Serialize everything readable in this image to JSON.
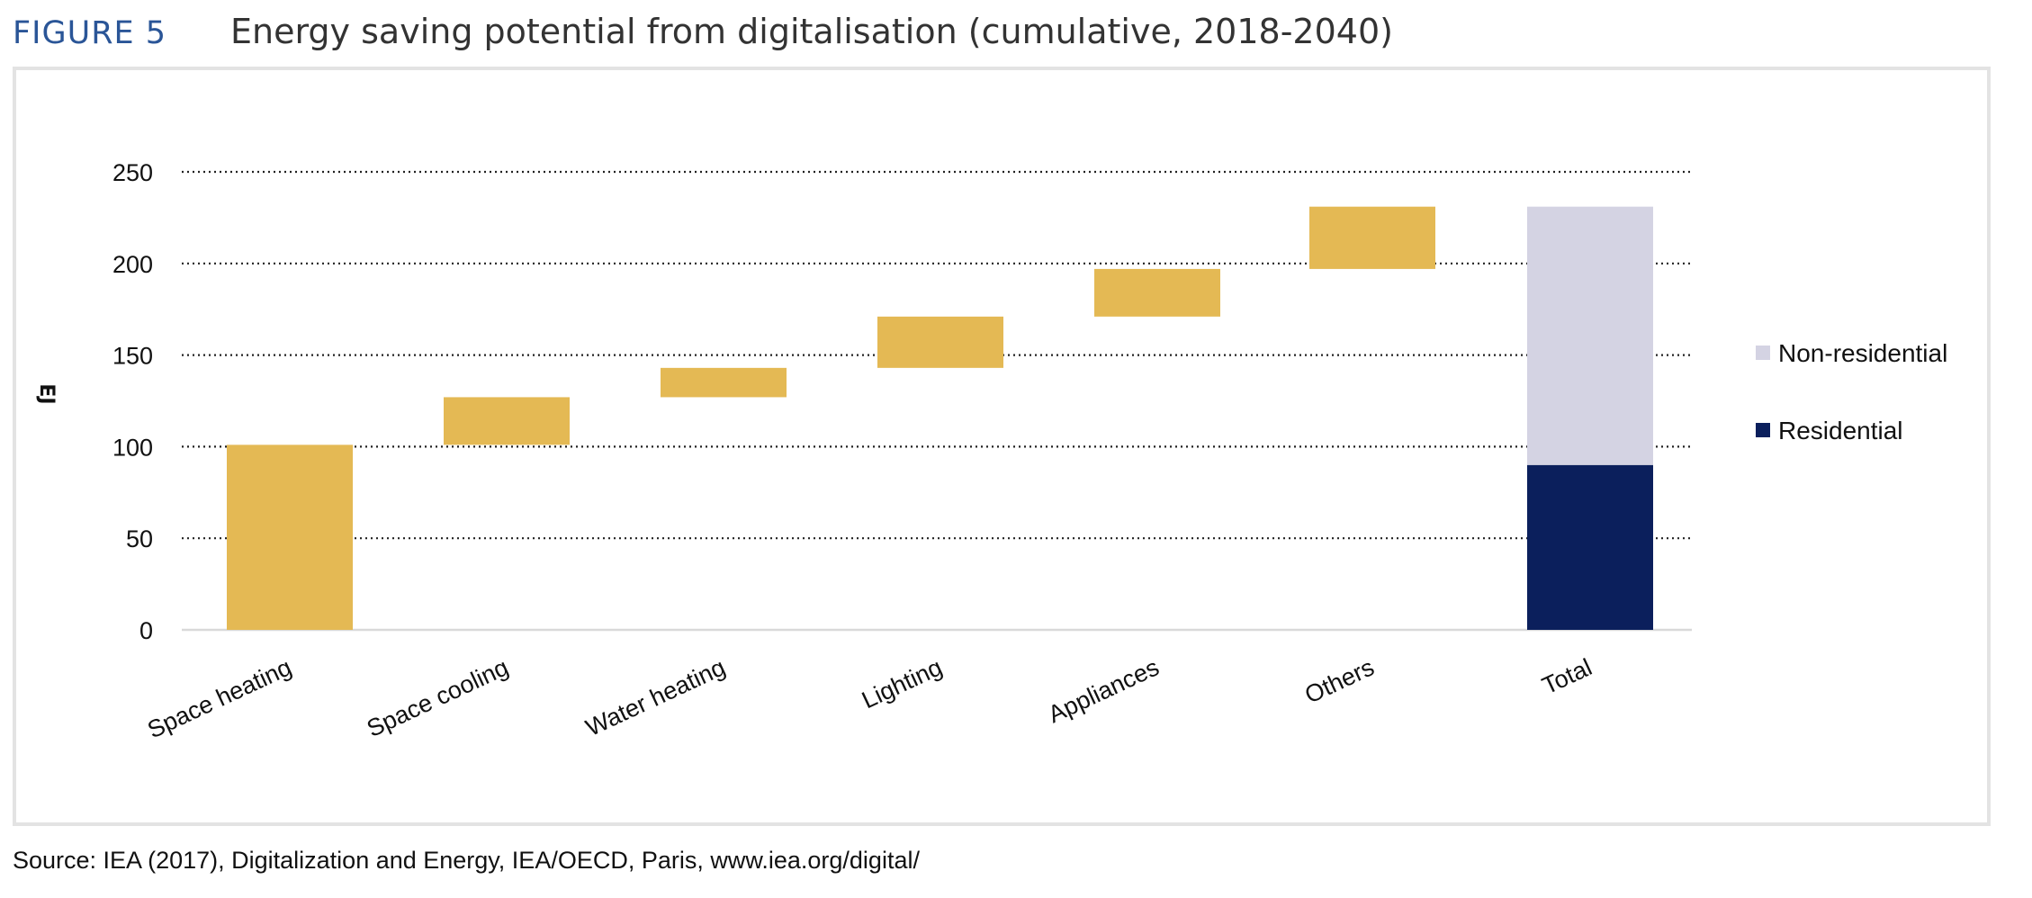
{
  "figure": {
    "label": "FIGURE 5",
    "title": "Energy saving potential from digitalisation (cumulative, 2018-2040)",
    "source": "Source: IEA (2017), Digitalization and Energy, IEA/OECD, Paris, www.iea.org/digital/"
  },
  "colors": {
    "increment": "#e4b954",
    "residential": "#0b1f5c",
    "non_residential": "#d4d3e3",
    "frame": "#e3e3e3"
  },
  "chart_data": {
    "type": "bar",
    "subtype": "waterfall",
    "title": "Energy saving potential from digitalisation (cumulative, 2018-2040)",
    "xlabel": "",
    "ylabel": "EJ",
    "ylim": [
      0,
      250
    ],
    "yticks": [
      0,
      50,
      100,
      150,
      200,
      250
    ],
    "grid": true,
    "legend_position": "right",
    "categories": [
      "Space heating",
      "Space cooling",
      "Water heating",
      "Lighting",
      "Appliances",
      "Others",
      "Total"
    ],
    "increments": [
      {
        "category": "Space heating",
        "start": 0,
        "end": 101
      },
      {
        "category": "Space cooling",
        "start": 101,
        "end": 127
      },
      {
        "category": "Water heating",
        "start": 127,
        "end": 143
      },
      {
        "category": "Lighting",
        "start": 143,
        "end": 171
      },
      {
        "category": "Appliances",
        "start": 171,
        "end": 197
      },
      {
        "category": "Others",
        "start": 197,
        "end": 231
      }
    ],
    "total": {
      "category": "Total",
      "series": [
        {
          "name": "Residential",
          "value": 90
        },
        {
          "name": "Non-residential",
          "value": 141
        }
      ]
    },
    "legend": [
      "Non-residential",
      "Residential"
    ]
  }
}
